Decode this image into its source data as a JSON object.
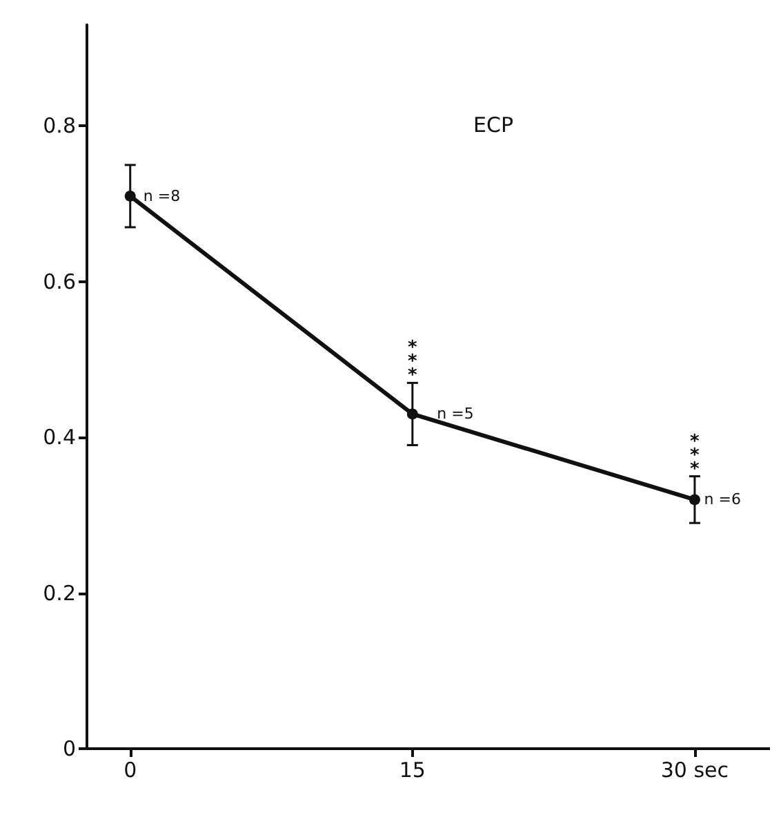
{
  "chart_data": {
    "type": "line",
    "title": "ECP",
    "x": [
      0,
      15,
      30
    ],
    "series": [
      {
        "color": "#111111",
        "values": [
          0.71,
          0.43,
          0.32
        ],
        "errors": [
          0.04,
          0.04,
          0.03
        ]
      }
    ],
    "xlim": [
      -2.3,
      34
    ],
    "xticks": [
      0,
      15,
      {
        "value": 30,
        "label": "30 sec"
      }
    ],
    "ylim": [
      0,
      0.93
    ],
    "yticks": [
      0,
      0.2,
      0.4,
      0.6,
      0.8
    ],
    "marker": "circle",
    "line_style": "solid",
    "grid": false,
    "annotations": [
      {
        "text": "n =8",
        "x": 0.7,
        "y": 0.71
      },
      {
        "text": "n =5",
        "x": 16.3,
        "y": 0.43
      },
      {
        "text": "n =6",
        "x": 30.5,
        "y": 0.32
      },
      {
        "text": "***",
        "x": 15,
        "y": 0.47
      },
      {
        "text": "***",
        "x": 30,
        "y": 0.35
      }
    ]
  }
}
